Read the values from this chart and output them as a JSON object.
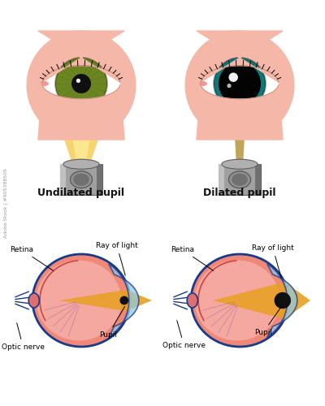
{
  "bg_color": "#ffffff",
  "skin_color": "#f5b8a8",
  "iris_left_color": "#6b8520",
  "iris_right_color": "#107878",
  "pupil_left_r": 12,
  "pupil_right_r": 26,
  "iris_left_r": 32,
  "iris_right_r": 32,
  "label_undilated": "Undilated pupil",
  "label_dilated": "Dilated pupil",
  "label_retina": "Retina",
  "label_ray": "Ray of light",
  "label_optic": "Optic nerve",
  "label_pupil": "Pupil",
  "light_yellow": "#f5d060",
  "light_orange": "#e8a820",
  "camera_body": "#909090",
  "eye_outline": "#1a3a8a",
  "eye_body": "#f08878",
  "eye_inner": "#f4a8a0",
  "cornea_color": "#90c8e0",
  "ray_color": "#e8a020",
  "watermark": "Adobe Stock | #905388505"
}
